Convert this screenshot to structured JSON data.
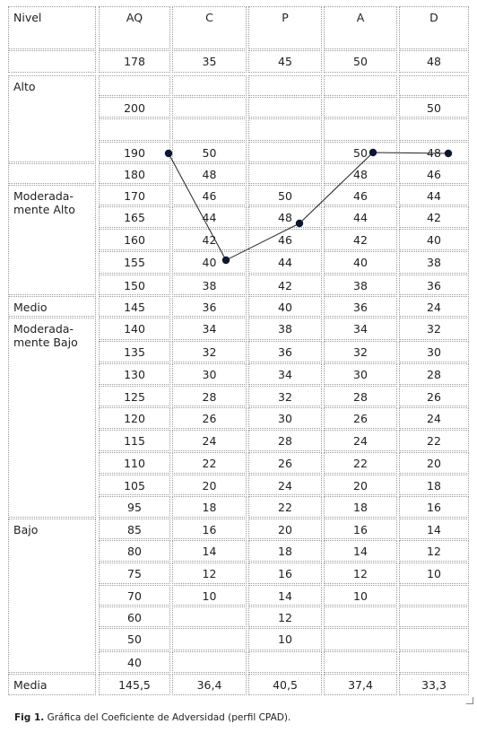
{
  "table": {
    "headers": [
      "Nivel",
      "AQ",
      "C",
      "P",
      "A",
      "D"
    ],
    "rows": [
      [
        "",
        "178",
        "35",
        "45",
        "50",
        "48"
      ],
      [
        "Alto",
        "",
        "",
        "",
        "",
        ""
      ],
      [
        "",
        "200",
        "",
        "",
        "",
        "50"
      ],
      [
        "",
        "",
        "",
        "",
        "",
        ""
      ],
      [
        "",
        "190",
        "50",
        "",
        "50",
        "48"
      ],
      [
        "",
        "180",
        "48",
        "",
        "48",
        "46"
      ],
      [
        "Moderada-\nmente Alto",
        "170",
        "46",
        "50",
        "46",
        "44"
      ],
      [
        "",
        "165",
        "44",
        "48",
        "44",
        "42"
      ],
      [
        "",
        "160",
        "42",
        "46",
        "42",
        "40"
      ],
      [
        "",
        "155",
        "40",
        "44",
        "40",
        "38"
      ],
      [
        "",
        "150",
        "38",
        "42",
        "38",
        "36"
      ],
      [
        "Medio",
        "145",
        "36",
        "40",
        "36",
        "24"
      ],
      [
        "Moderada-\nmente Bajo",
        "140",
        "34",
        "38",
        "34",
        "32"
      ],
      [
        "",
        "135",
        "32",
        "36",
        "32",
        "30"
      ],
      [
        "",
        "130",
        "30",
        "34",
        "30",
        "28"
      ],
      [
        "",
        "125",
        "28",
        "32",
        "28",
        "26"
      ],
      [
        "",
        "120",
        "26",
        "30",
        "26",
        "24"
      ],
      [
        "",
        "115",
        "24",
        "28",
        "24",
        "22"
      ],
      [
        "",
        "110",
        "22",
        "26",
        "22",
        "20"
      ],
      [
        "",
        "105",
        "20",
        "24",
        "20",
        "18"
      ],
      [
        "",
        "95",
        "18",
        "22",
        "18",
        "16"
      ],
      [
        "Bajo",
        "85",
        "16",
        "20",
        "16",
        "14"
      ],
      [
        "",
        "80",
        "14",
        "18",
        "14",
        "12"
      ],
      [
        "",
        "75",
        "12",
        "16",
        "12",
        "10"
      ],
      [
        "",
        "70",
        "10",
        "14",
        "10",
        ""
      ],
      [
        "",
        "60",
        "",
        "12",
        "",
        ""
      ],
      [
        "",
        "50",
        "",
        "10",
        "",
        ""
      ],
      [
        "",
        "40",
        "",
        "",
        "",
        ""
      ],
      [
        "Media",
        "145,5",
        "36,4",
        "40,5",
        "37,4",
        "33,3"
      ]
    ]
  },
  "profile": [
    {
      "column": "AQ",
      "value": "190"
    },
    {
      "column": "C",
      "value": "40"
    },
    {
      "column": "P",
      "value": "48"
    },
    {
      "column": "A",
      "value": "50"
    },
    {
      "column": "D",
      "value": "48"
    }
  ],
  "caption": {
    "label": "Fig 1.",
    "text": " Gráfica del Coeficiente de Adversidad (perfil CPAD)."
  },
  "colors": {
    "grid": "#9a9a9a",
    "marker": "#0b1630",
    "line": "#222222"
  }
}
